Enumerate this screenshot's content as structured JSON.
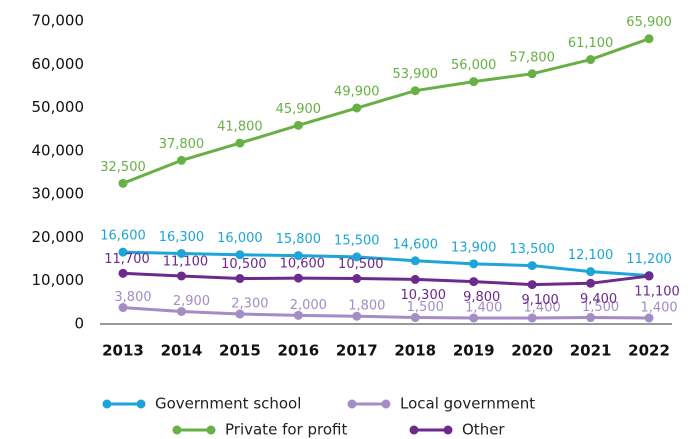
{
  "chart_data": {
    "type": "line",
    "categories": [
      "2013",
      "2014",
      "2015",
      "2016",
      "2017",
      "2018",
      "2019",
      "2020",
      "2021",
      "2022"
    ],
    "ylim": [
      0,
      70000
    ],
    "yticks": [
      0,
      {
        "value": 10000,
        "label": "10,000"
      },
      {
        "value": 20000,
        "label": "20,000"
      },
      {
        "value": 30000,
        "label": "30,000"
      },
      {
        "value": 40000,
        "label": "40,000"
      },
      {
        "value": 50000,
        "label": "50,000"
      },
      {
        "value": 60000,
        "label": "60,000"
      },
      {
        "value": 70000,
        "label": "70,000"
      }
    ],
    "series": [
      {
        "name": "Government school",
        "color": "#1ea5d8",
        "values": [
          16600,
          16300,
          16000,
          15800,
          15500,
          14600,
          13900,
          13500,
          12100,
          11200
        ],
        "value_labels": [
          "16,600",
          "16,300",
          "16,000",
          "15,800",
          "15,500",
          "14,600",
          "13,900",
          "13,500",
          "12,100",
          "11,200"
        ]
      },
      {
        "name": "Local government",
        "color": "#a48cc4",
        "values": [
          3800,
          2900,
          2300,
          2000,
          1800,
          1500,
          1400,
          1400,
          1500,
          1400
        ],
        "value_labels": [
          "3,800",
          "2,900",
          "2,300",
          "2,000",
          "1,800",
          "1,500",
          "1,400",
          "1,400",
          "1,500",
          "1,400"
        ]
      },
      {
        "name": "Private for profit",
        "color": "#68b045",
        "values": [
          32500,
          37800,
          41800,
          45900,
          49900,
          53900,
          56000,
          57800,
          61100,
          65900
        ],
        "value_labels": [
          "32,500",
          "37,800",
          "41,800",
          "45,900",
          "49,900",
          "53,900",
          "56,000",
          "57,800",
          "61,100",
          "65,900"
        ]
      },
      {
        "name": "Other",
        "color": "#6b2a8c",
        "values": [
          11700,
          11100,
          10500,
          10600,
          10500,
          10300,
          9800,
          9100,
          9400,
          11100
        ],
        "value_labels": [
          "11,700",
          "11,100",
          "10,500",
          "10,600",
          "10,500",
          "10,300",
          "9,800",
          "9,100",
          "9,400",
          "11,100"
        ]
      }
    ]
  }
}
